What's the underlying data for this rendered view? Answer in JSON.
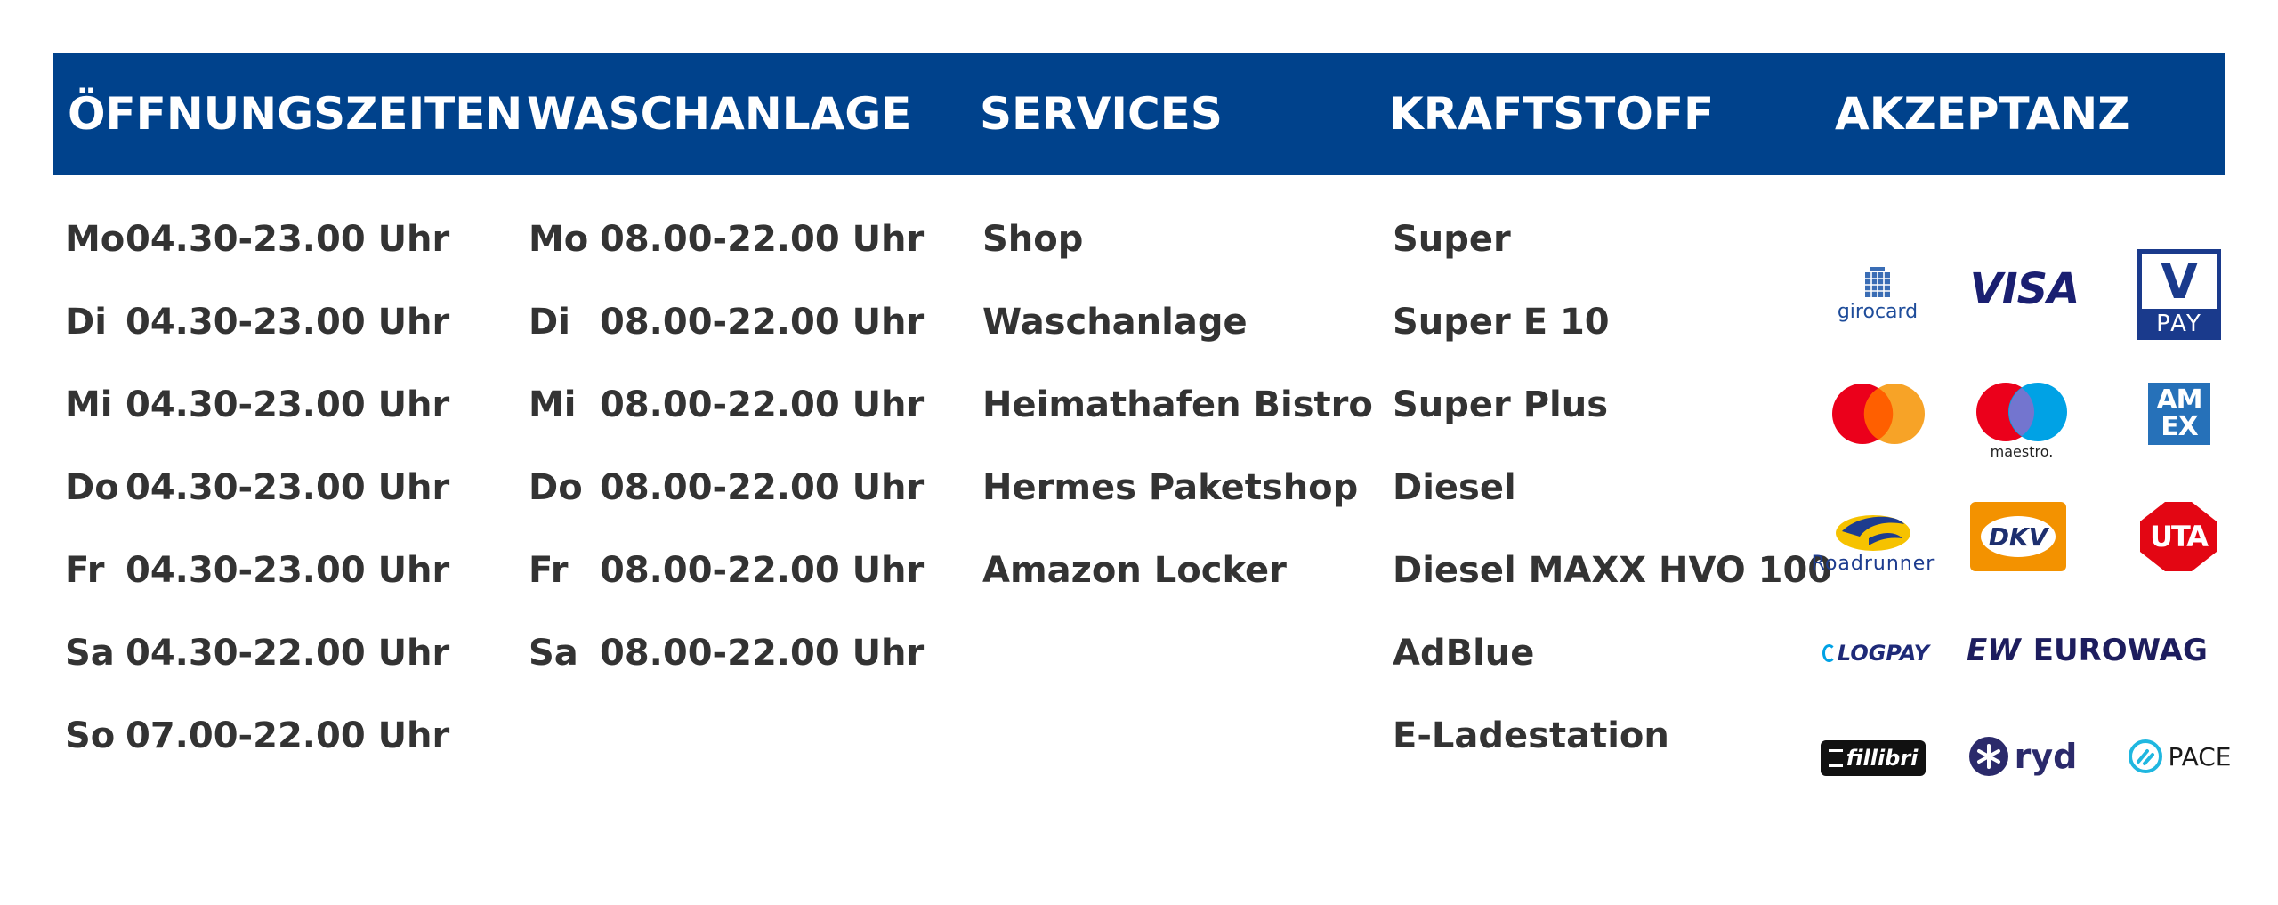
{
  "header": {
    "oeffnungszeiten": "ÖFFNUNGSZEITEN",
    "waschanlage": "WASCHANLAGE",
    "services": "SERVICES",
    "kraftstoff": "KRAFTSTOFF",
    "akzeptanz": "AKZEPTANZ"
  },
  "oeffnungszeiten": [
    {
      "day": "Mo",
      "hours": "04.30-23.00 Uhr"
    },
    {
      "day": "Di",
      "hours": "04.30-23.00 Uhr"
    },
    {
      "day": "Mi",
      "hours": "04.30-23.00 Uhr"
    },
    {
      "day": "Do",
      "hours": "04.30-23.00 Uhr"
    },
    {
      "day": "Fr",
      "hours": "04.30-23.00 Uhr"
    },
    {
      "day": "Sa",
      "hours": "04.30-22.00 Uhr"
    },
    {
      "day": "So",
      "hours": "07.00-22.00 Uhr"
    }
  ],
  "waschanlage": [
    {
      "day": "Mo",
      "hours": "08.00-22.00 Uhr"
    },
    {
      "day": "Di",
      "hours": "08.00-22.00 Uhr"
    },
    {
      "day": "Mi",
      "hours": "08.00-22.00 Uhr"
    },
    {
      "day": "Do",
      "hours": "08.00-22.00 Uhr"
    },
    {
      "day": "Fr",
      "hours": "08.00-22.00 Uhr"
    },
    {
      "day": "Sa",
      "hours": "08.00-22.00 Uhr"
    }
  ],
  "services": [
    "Shop",
    "Waschanlage",
    "Heimathafen Bistro",
    "Hermes Paketshop",
    "Amazon Locker"
  ],
  "kraftstoff": [
    "Super",
    "Super E 10",
    "Super Plus",
    "Diesel",
    "Diesel MAXX HVO 100",
    "AdBlue",
    "E-Ladestation"
  ],
  "akzeptanz": {
    "girocard": "girocard",
    "visa": "VISA",
    "vpay_v": "V",
    "vpay_pay": "PAY",
    "maestro": "maestro.",
    "amex_top": "AM",
    "amex_bottom": "EX",
    "roadrunner": "Roadrunner",
    "dkv": "DKV",
    "uta": "UTA",
    "logpay": "LOGPAY",
    "eurowag_mark": "EW",
    "eurowag": "EUROWAG",
    "fillibri": "fillibri",
    "ryd": "ryd",
    "pace": "PACE"
  },
  "colors": {
    "header_bg": "#00428c",
    "header_text": "#ffffff",
    "body_text": "#333333",
    "visa_blue": "#1a1f71",
    "mastercard_red": "#eb001b",
    "mastercard_orange": "#f79e1b",
    "maestro_blue": "#00a2e5",
    "amex_blue": "#2671b9",
    "dkv_orange": "#f39200",
    "uta_red": "#e30613",
    "eurowag_navy": "#1d1d5e",
    "ryd_navy": "#2b2a6b",
    "pace_cyan": "#1fb7e0"
  }
}
